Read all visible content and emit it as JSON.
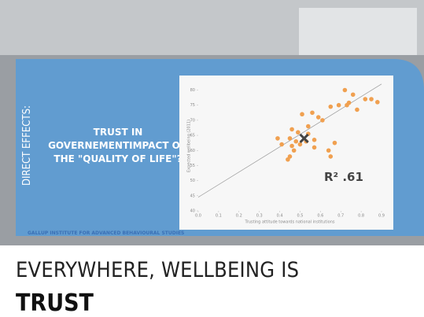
{
  "slide": {
    "side_label": "DIRECT EFFECTS:",
    "heading": [
      "TRUST IN",
      "GOVERNEMENTIMPACT ON",
      "THE \"QUALITY OF LIFE\"?"
    ],
    "source": "GALLUP INSTITUTE FOR ADVANCED BEHAVIOURAL STUDIES",
    "headline": "EVERYWHERE, WELLBEING IS",
    "headline_bold": "TRUST"
  },
  "chart_data": {
    "type": "scatter",
    "xlabel": "Trusting attitude towards national institutions",
    "ylabel": "Expected wellbeing (2011)",
    "annotation": "R² .61",
    "color": "#f0a050",
    "x": [
      0.72,
      0.76,
      0.82,
      0.85,
      0.88,
      0.74,
      0.69,
      0.65,
      0.73,
      0.78,
      0.56,
      0.51,
      0.59,
      0.61,
      0.54,
      0.46,
      0.49,
      0.54,
      0.45,
      0.48,
      0.53,
      0.57,
      0.39,
      0.41,
      0.46,
      0.5,
      0.67,
      0.47,
      0.45,
      0.44,
      0.65,
      0.64,
      0.57
    ],
    "y": [
      80,
      78.5,
      77,
      77,
      76,
      75.8,
      75,
      74.5,
      75,
      73.5,
      72.5,
      72,
      71,
      70,
      68,
      67,
      66,
      65.5,
      64,
      63,
      63,
      63.5,
      64,
      62,
      61.5,
      62,
      62.5,
      60,
      58,
      57,
      58,
      60,
      61
    ],
    "highlight": {
      "x": 0.52,
      "y": 64
    },
    "trendline": {
      "x": [
        0,
        0.9
      ],
      "y": [
        44.5,
        82
      ]
    },
    "xlim": [
      0,
      0.9
    ],
    "ylim": [
      40,
      83
    ],
    "xticks": [
      {
        "value": 0,
        "label": "0.0"
      },
      0.1,
      0.2,
      0.3,
      0.4,
      0.5,
      0.6,
      0.7,
      0.8,
      0.9
    ],
    "yticks": [
      40,
      45,
      50,
      55,
      60,
      65,
      70,
      75,
      80
    ]
  }
}
